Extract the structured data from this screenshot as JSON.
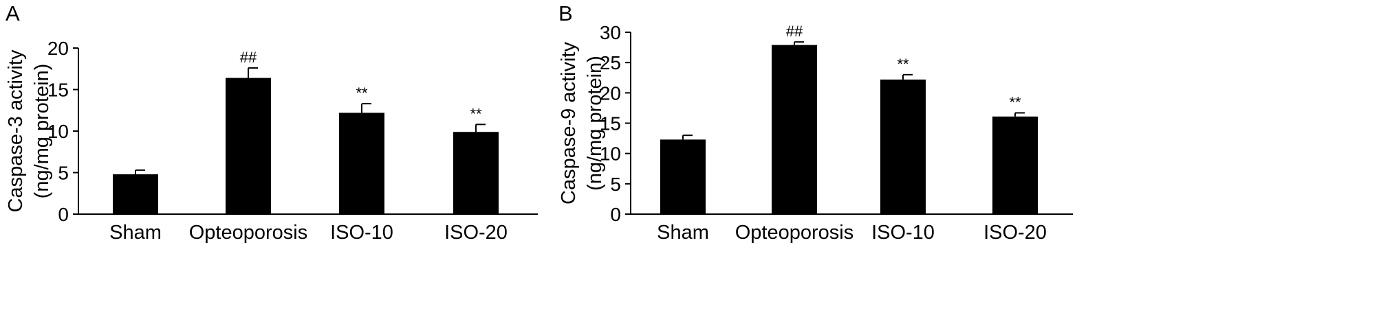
{
  "chart_data": [
    {
      "panel": "A",
      "type": "bar",
      "categories": [
        "Sham",
        "Opteoporosis",
        "ISO-10",
        "ISO-20"
      ],
      "values": [
        4.8,
        16.4,
        12.2,
        9.9
      ],
      "errors": [
        0.5,
        1.2,
        1.1,
        0.9
      ],
      "annotations": [
        "",
        "##",
        "**",
        "**"
      ],
      "ylabel_lines": [
        "Caspase-3 activity",
        "(ng/mg protein)"
      ],
      "ylim": [
        0,
        20
      ],
      "yticks": [
        0,
        5,
        10,
        15,
        20
      ],
      "grid": false
    },
    {
      "panel": "B",
      "type": "bar",
      "categories": [
        "Sham",
        "Opteoporosis",
        "ISO-10",
        "ISO-20"
      ],
      "values": [
        12.3,
        27.9,
        22.2,
        16.1
      ],
      "errors": [
        0.7,
        0.5,
        0.8,
        0.6
      ],
      "annotations": [
        "",
        "##",
        "**",
        "**"
      ],
      "ylabel_lines": [
        "Caspase-9 activity",
        "(ng/mg protein)"
      ],
      "ylim": [
        0,
        30
      ],
      "yticks": [
        0,
        5,
        10,
        15,
        20,
        25,
        30
      ],
      "grid": false
    }
  ],
  "colors": {
    "bar": "#000000",
    "axis": "#000000",
    "background": "#ffffff"
  }
}
